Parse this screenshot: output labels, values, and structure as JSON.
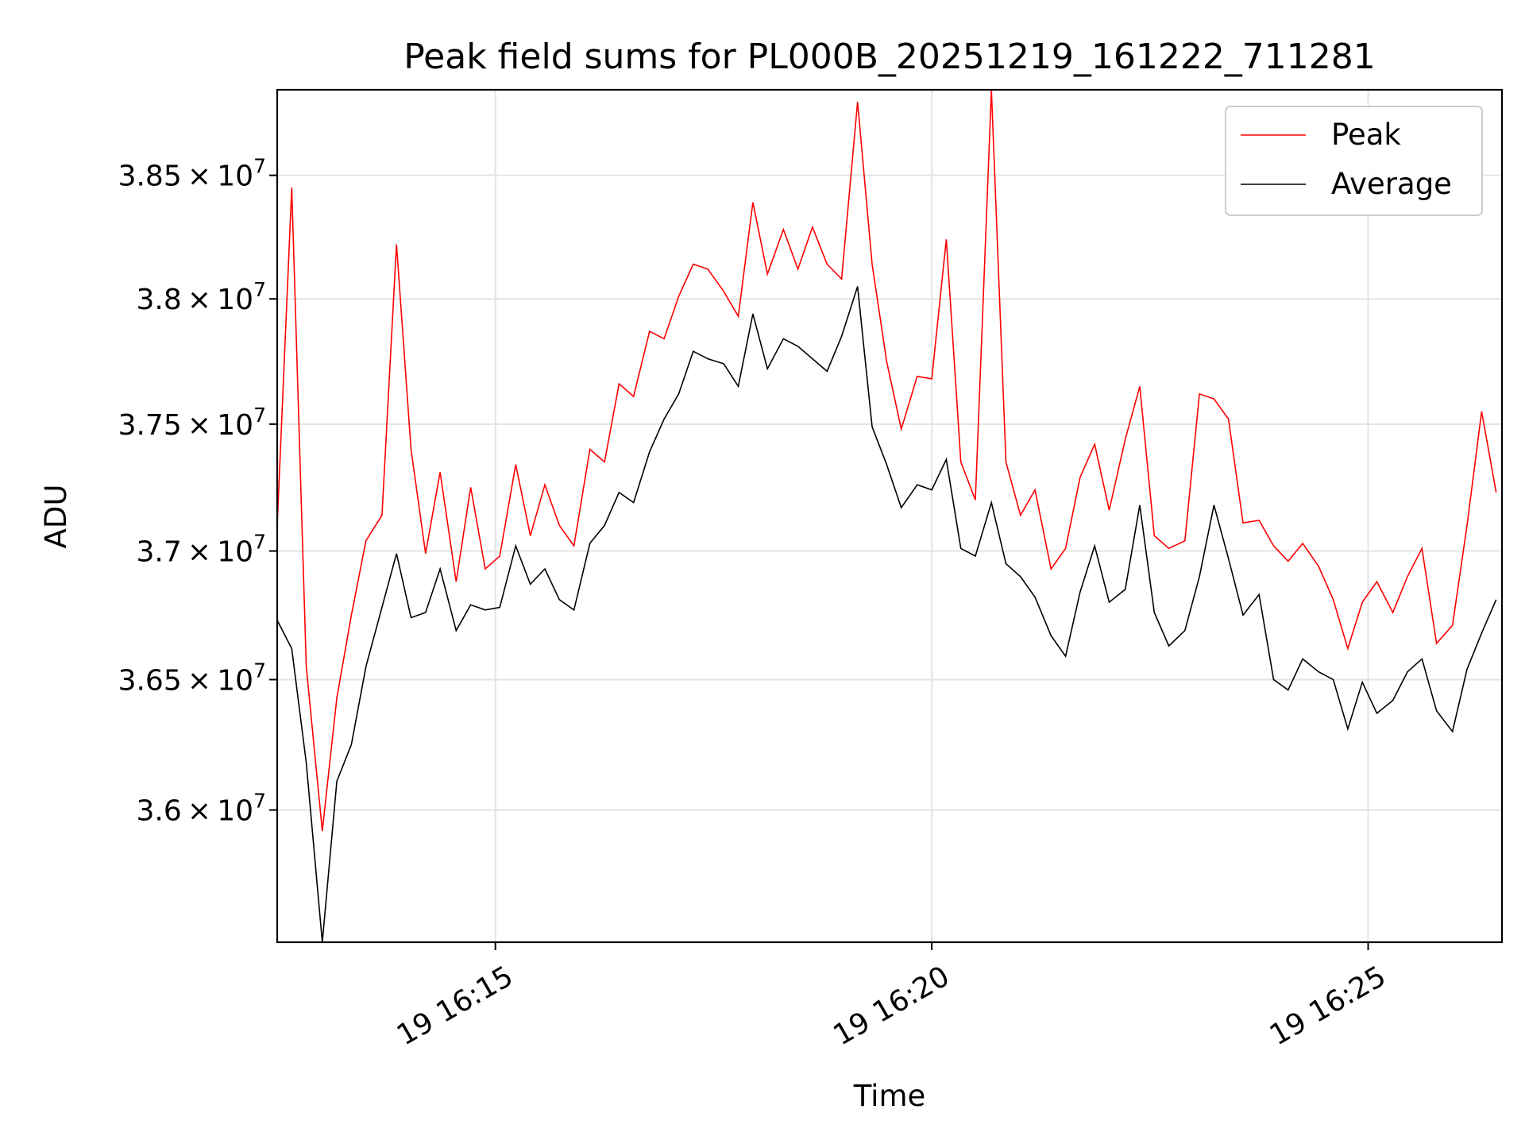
{
  "chart_data": {
    "type": "line",
    "title": "Peak field sums for PL000B_20251219_161222_711281",
    "xlabel": "Time",
    "ylabel": "ADU",
    "y_scale": "log",
    "ylim": [
      35500000,
      38850000
    ],
    "xlim": [
      "2025-12-19 16:12:30",
      "2025-12-19 16:26:32"
    ],
    "grid": true,
    "legend_position": "top-right",
    "y_ticks": [
      {
        "value": 36000000,
        "mantissa": "3.6",
        "exp": "7"
      },
      {
        "value": 36500000,
        "mantissa": "3.65",
        "exp": "7"
      },
      {
        "value": 37000000,
        "mantissa": "3.7",
        "exp": "7"
      },
      {
        "value": 37500000,
        "mantissa": "3.75",
        "exp": "7"
      },
      {
        "value": 38000000,
        "mantissa": "3.8",
        "exp": "7"
      },
      {
        "value": 38500000,
        "mantissa": "3.85",
        "exp": "7"
      }
    ],
    "x_ticks": [
      {
        "value": "2025-12-19 16:15:00",
        "label": "19 16:15"
      },
      {
        "value": "2025-12-19 16:20:00",
        "label": "19 16:20"
      },
      {
        "value": "2025-12-19 16:25:00",
        "label": "19 16:25"
      }
    ],
    "x": [
      "2025-12-19 16:12:30",
      "2025-12-19 16:12:40",
      "2025-12-19 16:12:50",
      "2025-12-19 16:13:01",
      "2025-12-19 16:13:11",
      "2025-12-19 16:13:21",
      "2025-12-19 16:13:31",
      "2025-12-19 16:13:42",
      "2025-12-19 16:13:52",
      "2025-12-19 16:14:02",
      "2025-12-19 16:14:12",
      "2025-12-19 16:14:22",
      "2025-12-19 16:14:33",
      "2025-12-19 16:14:43",
      "2025-12-19 16:14:53",
      "2025-12-19 16:15:03",
      "2025-12-19 16:15:14",
      "2025-12-19 16:15:24",
      "2025-12-19 16:15:34",
      "2025-12-19 16:15:44",
      "2025-12-19 16:15:54",
      "2025-12-19 16:16:05",
      "2025-12-19 16:16:15",
      "2025-12-19 16:16:25",
      "2025-12-19 16:16:35",
      "2025-12-19 16:16:46",
      "2025-12-19 16:16:56",
      "2025-12-19 16:17:06",
      "2025-12-19 16:17:16",
      "2025-12-19 16:17:26",
      "2025-12-19 16:17:37",
      "2025-12-19 16:17:47",
      "2025-12-19 16:17:57",
      "2025-12-19 16:18:07",
      "2025-12-19 16:18:18",
      "2025-12-19 16:18:28",
      "2025-12-19 16:18:38",
      "2025-12-19 16:18:48",
      "2025-12-19 16:18:58",
      "2025-12-19 16:19:09",
      "2025-12-19 16:19:19",
      "2025-12-19 16:19:29",
      "2025-12-19 16:19:39",
      "2025-12-19 16:19:50",
      "2025-12-19 16:20:00",
      "2025-12-19 16:20:10",
      "2025-12-19 16:20:20",
      "2025-12-19 16:20:30",
      "2025-12-19 16:20:41",
      "2025-12-19 16:20:51",
      "2025-12-19 16:21:01",
      "2025-12-19 16:21:11",
      "2025-12-19 16:21:22",
      "2025-12-19 16:21:32",
      "2025-12-19 16:21:42",
      "2025-12-19 16:21:52",
      "2025-12-19 16:22:02",
      "2025-12-19 16:22:13",
      "2025-12-19 16:22:23",
      "2025-12-19 16:22:33",
      "2025-12-19 16:22:43",
      "2025-12-19 16:22:54",
      "2025-12-19 16:23:04",
      "2025-12-19 16:23:14",
      "2025-12-19 16:23:24",
      "2025-12-19 16:23:34",
      "2025-12-19 16:23:45",
      "2025-12-19 16:23:55",
      "2025-12-19 16:24:05",
      "2025-12-19 16:24:15",
      "2025-12-19 16:24:26",
      "2025-12-19 16:24:36",
      "2025-12-19 16:24:46",
      "2025-12-19 16:24:56",
      "2025-12-19 16:25:06",
      "2025-12-19 16:25:17",
      "2025-12-19 16:25:27",
      "2025-12-19 16:25:37",
      "2025-12-19 16:25:47",
      "2025-12-19 16:25:58",
      "2025-12-19 16:26:08",
      "2025-12-19 16:26:18",
      "2025-12-19 16:26:28"
    ],
    "series": [
      {
        "name": "Peak",
        "color": "#ff0000",
        "values": [
          37100000,
          38450000,
          36550000,
          35920000,
          36430000,
          36750000,
          37040000,
          37140000,
          38220000,
          37400000,
          36990000,
          37310000,
          36880000,
          37250000,
          36930000,
          36980000,
          37340000,
          37060000,
          37260000,
          37100000,
          37020000,
          37400000,
          37350000,
          37660000,
          37610000,
          37870000,
          37840000,
          38010000,
          38140000,
          38120000,
          38030000,
          37930000,
          38390000,
          38100000,
          38280000,
          38120000,
          38290000,
          38140000,
          38080000,
          38800000,
          38140000,
          37750000,
          37480000,
          37690000,
          37680000,
          38240000,
          37350000,
          37200000,
          38850000,
          37350000,
          37140000,
          37240000,
          36930000,
          37010000,
          37290000,
          37420000,
          37160000,
          37440000,
          37650000,
          37060000,
          37010000,
          37040000,
          37620000,
          37600000,
          37520000,
          37110000,
          37120000,
          37020000,
          36960000,
          37030000,
          36940000,
          36810000,
          36620000,
          36800000,
          36880000,
          36760000,
          36900000,
          37010000,
          36640000,
          36710000,
          37100000,
          37550000,
          37230000
        ]
      },
      {
        "name": "Average",
        "color": "#000000",
        "values": [
          36730000,
          36620000,
          36180000,
          35500000,
          36110000,
          36250000,
          36550000,
          36780000,
          36990000,
          36740000,
          36760000,
          36930000,
          36690000,
          36790000,
          36770000,
          36780000,
          37020000,
          36870000,
          36930000,
          36810000,
          36770000,
          37030000,
          37100000,
          37230000,
          37190000,
          37390000,
          37520000,
          37620000,
          37790000,
          37760000,
          37740000,
          37650000,
          37940000,
          37720000,
          37840000,
          37810000,
          37760000,
          37710000,
          37850000,
          38050000,
          37490000,
          37340000,
          37170000,
          37260000,
          37240000,
          37360000,
          37010000,
          36980000,
          37190000,
          36950000,
          36900000,
          36820000,
          36670000,
          36590000,
          36840000,
          37020000,
          36800000,
          36850000,
          37180000,
          36760000,
          36630000,
          36690000,
          36900000,
          37180000,
          36970000,
          36750000,
          36830000,
          36500000,
          36460000,
          36580000,
          36530000,
          36500000,
          36310000,
          36490000,
          36370000,
          36420000,
          36530000,
          36580000,
          36380000,
          36300000,
          36540000,
          36680000,
          36810000
        ]
      }
    ]
  }
}
